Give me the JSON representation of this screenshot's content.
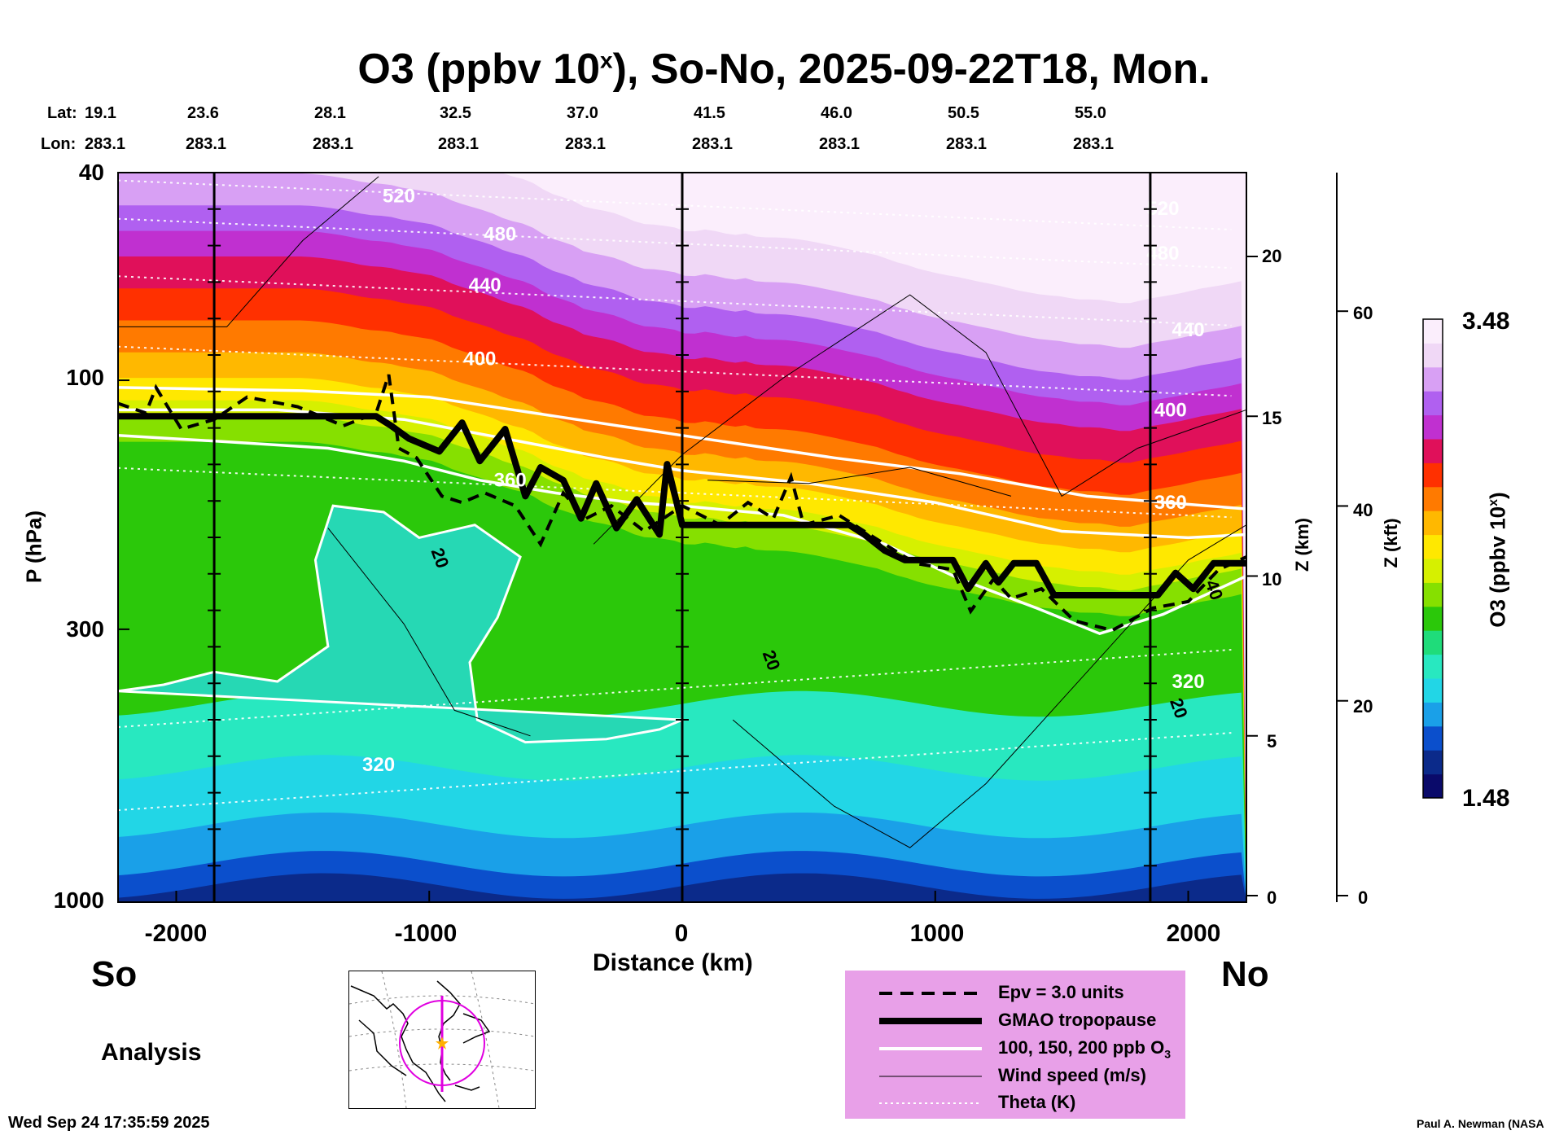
{
  "title": {
    "main": "O3 (ppbv 10",
    "sup": "x",
    "rest": "), So-No, 2025-09-22T18, Mon."
  },
  "header": {
    "lat_label": "Lat:",
    "lon_label": "Lon:",
    "lats": [
      "19.1",
      "23.6",
      "28.1",
      "32.5",
      "37.0",
      "41.5",
      "46.0",
      "50.5",
      "55.0"
    ],
    "lons": [
      "283.1",
      "283.1",
      "283.1",
      "283.1",
      "283.1",
      "283.1",
      "283.1",
      "283.1",
      "283.1"
    ]
  },
  "chart_data": {
    "type": "heatmap",
    "title": "O3 (ppbv 10^x), So-No, 2025-09-22T18, Mon.",
    "xlabel": "Distance (km)",
    "ylabel": "P (hPa)",
    "xlim": [
      -2230,
      2230
    ],
    "ylim_hpa": [
      1000,
      40
    ],
    "x_ticks": [
      -2000,
      -1000,
      0,
      1000,
      2000
    ],
    "x_tick_labels": [
      "-2000",
      "-1000",
      "0",
      "1000",
      "2000"
    ],
    "y_ticks_hpa": [
      40,
      100,
      300,
      1000
    ],
    "y_tick_labels": [
      "40",
      "100",
      "300",
      "1000"
    ],
    "z_km_label": "Z (km)",
    "z_km_ticks": [
      "20",
      "15",
      "10",
      "5",
      "0"
    ],
    "z_km_values": [
      20,
      15,
      10,
      5,
      0
    ],
    "z_kft_label": "Z (kft)",
    "z_kft_ticks": [
      "60",
      "40",
      "20",
      "0"
    ],
    "z_kft_values": [
      60,
      40,
      20,
      0
    ],
    "colorbar": {
      "label": "O3 (ppbv 10",
      "label_sup": "x",
      "label_end": ")",
      "max": "3.48",
      "min": "1.48"
    },
    "theta_levels": [
      {
        "label": "320",
        "x": -1200,
        "z_km": 3.9
      },
      {
        "label": "320",
        "x": 2000,
        "z_km": 6.5
      },
      {
        "label": "360",
        "x": -680,
        "z_km": 12.8
      },
      {
        "label": "360",
        "x": 1930,
        "z_km": 12.1
      },
      {
        "label": "400",
        "x": -800,
        "z_km": 16.6
      },
      {
        "label": "400",
        "x": 1930,
        "z_km": 15.0
      },
      {
        "label": "440",
        "x": -780,
        "z_km": 18.9
      },
      {
        "label": "440",
        "x": 2000,
        "z_km": 17.5
      },
      {
        "label": "480",
        "x": -720,
        "z_km": 20.5
      },
      {
        "label": "480",
        "x": 1900,
        "z_km": 19.9
      },
      {
        "label": "520",
        "x": -1120,
        "z_km": 21.7
      },
      {
        "label": "520",
        "x": 1900,
        "z_km": 21.3
      }
    ],
    "wind_labels": [
      {
        "label": "20",
        "x": -980,
        "z_km": 10.5
      },
      {
        "label": "20",
        "x": 330,
        "z_km": 7.3
      },
      {
        "label": "20",
        "x": 1940,
        "z_km": 5.8
      },
      {
        "label": "40",
        "x": 2080,
        "z_km": 9.5
      }
    ],
    "tropopause_gmao": [
      {
        "x": -2230,
        "z_km": 15.0
      },
      {
        "x": -1210,
        "z_km": 15.0
      },
      {
        "x": -1150,
        "z_km": 14.7
      },
      {
        "x": -1080,
        "z_km": 14.3
      },
      {
        "x": -960,
        "z_km": 13.9
      },
      {
        "x": -870,
        "z_km": 14.8
      },
      {
        "x": -800,
        "z_km": 13.6
      },
      {
        "x": -700,
        "z_km": 14.6
      },
      {
        "x": -620,
        "z_km": 12.5
      },
      {
        "x": -560,
        "z_km": 13.4
      },
      {
        "x": -470,
        "z_km": 13.0
      },
      {
        "x": -400,
        "z_km": 11.8
      },
      {
        "x": -340,
        "z_km": 12.9
      },
      {
        "x": -260,
        "z_km": 11.5
      },
      {
        "x": -180,
        "z_km": 12.4
      },
      {
        "x": -90,
        "z_km": 11.3
      },
      {
        "x": -60,
        "z_km": 13.5
      },
      {
        "x": 0,
        "z_km": 11.6
      },
      {
        "x": 660,
        "z_km": 11.6
      },
      {
        "x": 720,
        "z_km": 11.3
      },
      {
        "x": 800,
        "z_km": 10.8
      },
      {
        "x": 880,
        "z_km": 10.5
      },
      {
        "x": 1070,
        "z_km": 10.5
      },
      {
        "x": 1130,
        "z_km": 9.6
      },
      {
        "x": 1200,
        "z_km": 10.4
      },
      {
        "x": 1250,
        "z_km": 9.8
      },
      {
        "x": 1310,
        "z_km": 10.4
      },
      {
        "x": 1400,
        "z_km": 10.4
      },
      {
        "x": 1470,
        "z_km": 9.4
      },
      {
        "x": 1880,
        "z_km": 9.4
      },
      {
        "x": 1950,
        "z_km": 10.1
      },
      {
        "x": 2020,
        "z_km": 9.6
      },
      {
        "x": 2100,
        "z_km": 10.4
      },
      {
        "x": 2230,
        "z_km": 10.4
      }
    ],
    "epv_3pvu": [
      {
        "x": -2230,
        "z_km": 15.4
      },
      {
        "x": -2120,
        "z_km": 15.1
      },
      {
        "x": -2080,
        "z_km": 15.9
      },
      {
        "x": -1980,
        "z_km": 14.6
      },
      {
        "x": -1850,
        "z_km": 14.9
      },
      {
        "x": -1720,
        "z_km": 15.6
      },
      {
        "x": -1520,
        "z_km": 15.3
      },
      {
        "x": -1340,
        "z_km": 14.7
      },
      {
        "x": -1210,
        "z_km": 15.1
      },
      {
        "x": -1160,
        "z_km": 16.3
      },
      {
        "x": -1120,
        "z_km": 14.0
      },
      {
        "x": -1050,
        "z_km": 13.7
      },
      {
        "x": -950,
        "z_km": 12.5
      },
      {
        "x": -870,
        "z_km": 12.3
      },
      {
        "x": -780,
        "z_km": 12.6
      },
      {
        "x": -660,
        "z_km": 12.2
      },
      {
        "x": -560,
        "z_km": 11.0
      },
      {
        "x": -470,
        "z_km": 12.6
      },
      {
        "x": -380,
        "z_km": 11.8
      },
      {
        "x": -280,
        "z_km": 12.2
      },
      {
        "x": -150,
        "z_km": 11.4
      },
      {
        "x": 0,
        "z_km": 12.2
      },
      {
        "x": 150,
        "z_km": 11.6
      },
      {
        "x": 260,
        "z_km": 12.3
      },
      {
        "x": 360,
        "z_km": 11.8
      },
      {
        "x": 430,
        "z_km": 13.1
      },
      {
        "x": 480,
        "z_km": 11.6
      },
      {
        "x": 620,
        "z_km": 11.9
      },
      {
        "x": 760,
        "z_km": 11.2
      },
      {
        "x": 920,
        "z_km": 10.4
      },
      {
        "x": 1070,
        "z_km": 10.2
      },
      {
        "x": 1140,
        "z_km": 8.9
      },
      {
        "x": 1230,
        "z_km": 9.9
      },
      {
        "x": 1300,
        "z_km": 9.3
      },
      {
        "x": 1420,
        "z_km": 9.6
      },
      {
        "x": 1550,
        "z_km": 8.6
      },
      {
        "x": 1700,
        "z_km": 8.3
      },
      {
        "x": 1860,
        "z_km": 9.0
      },
      {
        "x": 2000,
        "z_km": 9.2
      },
      {
        "x": 2120,
        "z_km": 10.2
      },
      {
        "x": 2230,
        "z_km": 10.6
      }
    ],
    "ozone_100ppb": [
      {
        "x": -2230,
        "z_km": 14.4
      },
      {
        "x": -1800,
        "z_km": 14.2
      },
      {
        "x": -1400,
        "z_km": 14.0
      },
      {
        "x": -1100,
        "z_km": 13.6
      },
      {
        "x": -800,
        "z_km": 13.0
      },
      {
        "x": -500,
        "z_km": 12.6
      },
      {
        "x": -200,
        "z_km": 12.3
      },
      {
        "x": 0,
        "z_km": 12.2
      },
      {
        "x": 400,
        "z_km": 11.9
      },
      {
        "x": 800,
        "z_km": 11.0
      },
      {
        "x": 1100,
        "z_km": 9.9
      },
      {
        "x": 1400,
        "z_km": 9.0
      },
      {
        "x": 1650,
        "z_km": 8.2
      },
      {
        "x": 1900,
        "z_km": 8.8
      },
      {
        "x": 2230,
        "z_km": 10.0
      }
    ],
    "ozone_150ppb": [
      {
        "x": -2230,
        "z_km": 15.2
      },
      {
        "x": -1600,
        "z_km": 15.2
      },
      {
        "x": -1100,
        "z_km": 14.9
      },
      {
        "x": -700,
        "z_km": 14.3
      },
      {
        "x": -300,
        "z_km": 13.7
      },
      {
        "x": 0,
        "z_km": 13.3
      },
      {
        "x": 500,
        "z_km": 12.9
      },
      {
        "x": 1000,
        "z_km": 12.3
      },
      {
        "x": 1500,
        "z_km": 11.4
      },
      {
        "x": 2000,
        "z_km": 11.2
      },
      {
        "x": 2230,
        "z_km": 11.3
      }
    ],
    "ozone_200ppb": [
      {
        "x": -2230,
        "z_km": 15.9
      },
      {
        "x": -1500,
        "z_km": 15.8
      },
      {
        "x": -1000,
        "z_km": 15.6
      },
      {
        "x": -500,
        "z_km": 15.0
      },
      {
        "x": 0,
        "z_km": 14.4
      },
      {
        "x": 600,
        "z_km": 13.7
      },
      {
        "x": 1100,
        "z_km": 13.2
      },
      {
        "x": 1600,
        "z_km": 12.5
      },
      {
        "x": 2230,
        "z_km": 12.1
      }
    ],
    "ozone_lowtrop_100ppb_regions": [
      {
        "name": "south_pocket",
        "points": [
          {
            "x": -2230,
            "z_km": 6.4
          },
          {
            "x": -2050,
            "z_km": 6.6
          },
          {
            "x": -1850,
            "z_km": 7.0
          },
          {
            "x": -1600,
            "z_km": 6.7
          },
          {
            "x": -1400,
            "z_km": 7.8
          },
          {
            "x": -1450,
            "z_km": 10.5
          },
          {
            "x": -1380,
            "z_km": 12.2
          },
          {
            "x": -1180,
            "z_km": 12.0
          },
          {
            "x": -1040,
            "z_km": 11.2
          },
          {
            "x": -820,
            "z_km": 11.6
          },
          {
            "x": -640,
            "z_km": 10.6
          },
          {
            "x": -730,
            "z_km": 8.7
          },
          {
            "x": -840,
            "z_km": 7.3
          },
          {
            "x": -810,
            "z_km": 5.5
          },
          {
            "x": -620,
            "z_km": 4.8
          },
          {
            "x": -300,
            "z_km": 4.9
          },
          {
            "x": -90,
            "z_km": 5.2
          },
          {
            "x": 0,
            "z_km": 5.5
          }
        ]
      }
    ],
    "legend": [
      {
        "label": "Epv = 3.0 units",
        "style": "dashed-black"
      },
      {
        "label": "GMAO tropopause",
        "style": "thick-black"
      },
      {
        "label": "100, 150, 200 ppb O",
        "sub": "3",
        "style": "white"
      },
      {
        "label": "Wind speed (m/s)",
        "style": "thin-black"
      },
      {
        "label": "Theta (K)",
        "style": "dotted-white"
      }
    ]
  },
  "labels": {
    "south": "So",
    "north": "No",
    "analysis": "Analysis",
    "timestamp": "Wed Sep 24 17:35:59 2025",
    "credit": "Paul A. Newman (NASA"
  },
  "colors": {
    "legend_bg": "#e8a0e8",
    "map_track": "#e000e0",
    "map_star": "#ffb000",
    "colormap": [
      "#0a0a6a",
      "#0b2a8a",
      "#0b4fcc",
      "#1aa0e8",
      "#22d6e6",
      "#28e8c0",
      "#1fdc7a",
      "#2bc80a",
      "#86e000",
      "#d6f000",
      "#ffe800",
      "#ffb800",
      "#ff7a00",
      "#ff3000",
      "#e0105a",
      "#c030d0",
      "#b060f0",
      "#d8a0f4",
      "#f0d8f6",
      "#fbeefc"
    ]
  }
}
